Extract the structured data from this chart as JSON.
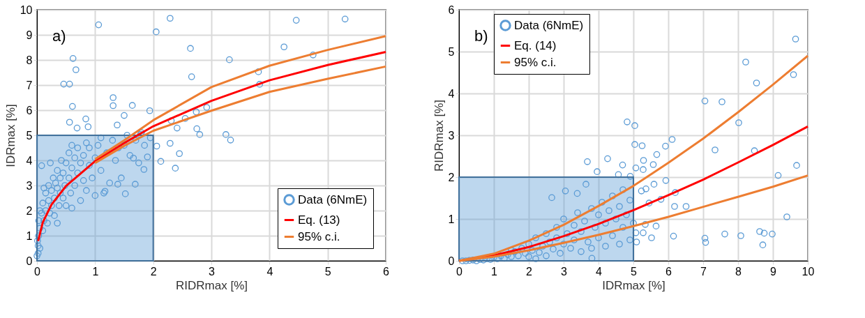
{
  "chart_data": [
    {
      "type": "scatter",
      "xlabel": "RIDRmax [%]",
      "ylabel": "IDRmax [%]",
      "annotations": [
        "a)"
      ],
      "xlim": [
        0,
        6
      ],
      "ylim": [
        0,
        10
      ],
      "xticks": [
        0,
        1,
        2,
        3,
        4,
        5,
        6
      ],
      "yticks": [
        0,
        1,
        2,
        3,
        4,
        5,
        6,
        7,
        8,
        9,
        10
      ],
      "grid": true,
      "legend": "bottom right",
      "series": [
        {
          "name": "Data (6NmE)",
          "marker": "circle",
          "color": "#5b9bd5",
          "x": [
            1.06,
            2.29,
            2.05,
            4.46,
            5.3,
            2.64,
            4.25,
            4.75,
            3.31,
            2.66,
            3.81,
            3.83,
            0.62,
            0.67,
            0.46,
            0.56,
            0.61,
            1.31,
            1.31,
            1.64,
            1.94,
            2.92,
            2.74,
            2.55,
            2.31,
            3.25,
            3.33,
            2.75,
            2.8,
            2.41,
            2.38,
            2.45,
            2.13,
            2.29,
            2.06,
            0.84,
            0.56,
            0.88,
            0.69,
            1.9,
            1.84,
            1.52,
            1.69,
            1.39,
            1.17,
            1.66,
            1.78,
            1.5,
            1.38,
            0.08,
            0.23,
            0.02,
            0.02,
            0.03,
            0.05,
            0.03,
            0.05,
            0.08,
            0.1,
            0.1,
            0.12,
            0.15,
            0.15,
            0.18,
            0.2,
            0.2,
            0.22,
            0.25,
            0.25,
            0.28,
            0.3,
            0.3,
            0.32,
            0.35,
            0.35,
            0.38,
            0.4,
            0.4,
            0.42,
            0.45,
            0.45,
            0.48,
            0.5,
            0.5,
            0.55,
            0.55,
            0.58,
            0.6,
            0.6,
            0.65,
            0.65,
            0.7,
            0.7,
            0.75,
            0.75,
            0.8,
            0.8,
            0.85,
            0.85,
            0.9,
            0.9,
            0.95,
            1.0,
            1.0,
            1.05,
            1.1,
            1.1,
            1.15,
            1.2,
            1.25,
            1.3,
            1.35,
            1.4,
            1.45,
            1.5,
            1.55,
            1.6,
            1.7,
            1.75,
            1.8,
            1.85,
            1.95,
            0.0,
            0.01,
            0.05,
            0.12,
            0.35,
            0.6
          ],
          "values": [
            9.4,
            9.66,
            9.12,
            9.58,
            9.63,
            8.46,
            8.52,
            8.2,
            8.01,
            7.33,
            7.53,
            7.03,
            8.06,
            7.61,
            7.04,
            7.04,
            6.15,
            6.5,
            6.18,
            6.19,
            5.98,
            6.11,
            5.93,
            5.67,
            5.58,
            5.03,
            4.81,
            5.26,
            5.03,
            5.29,
            3.69,
            4.27,
            3.96,
            4.68,
            4.57,
            5.65,
            5.52,
            5.34,
            5.29,
            4.14,
            3.64,
            2.67,
            3.05,
            3.05,
            2.77,
            4.09,
            5.03,
            5.79,
            5.41,
            3.79,
            3.9,
            0.3,
            0.6,
            1.0,
            1.3,
            1.6,
            0.5,
            1.9,
            1.2,
            2.3,
            1.6,
            2.0,
            2.7,
            1.5,
            2.4,
            3.0,
            1.9,
            2.2,
            2.8,
            3.3,
            1.8,
            2.5,
            3.1,
            2.9,
            3.6,
            2.2,
            3.3,
            2.7,
            4.0,
            2.5,
            3.5,
            3.0,
            3.9,
            2.2,
            3.3,
            4.3,
            2.7,
            3.7,
            4.6,
            3.0,
            4.1,
            3.5,
            4.5,
            2.4,
            3.9,
            4.2,
            3.2,
            4.7,
            2.8,
            3.8,
            4.5,
            3.3,
            4.1,
            2.6,
            4.6,
            3.6,
            4.9,
            2.7,
            4.3,
            3.1,
            4.8,
            4.0,
            4.5,
            3.3,
            4.6,
            5.0,
            4.2,
            4.8,
            3.9,
            5.1,
            4.6,
            4.9,
            0.2,
            0.8,
            2.0,
            2.9,
            1.5,
            2.1
          ]
        },
        {
          "type": "area",
          "color": "#5b9bd5",
          "x": [
            0,
            2
          ],
          "values": [
            5,
            5
          ]
        },
        {
          "name": "Eq. (13)",
          "type": "line",
          "color": "#ff0000",
          "x": [
            0.02,
            0.1,
            0.25,
            0.5,
            1,
            1.5,
            2,
            3,
            4,
            5,
            6
          ],
          "values": [
            0.79,
            1.53,
            2.24,
            2.98,
            3.97,
            4.69,
            5.36,
            6.37,
            7.19,
            7.8,
            8.32
          ]
        },
        {
          "name": "95% c.i.",
          "type": "line",
          "color": "#ed7d31",
          "x": [
            1,
            1.5,
            2,
            3,
            4,
            5,
            6
          ],
          "values": [
            4.05,
            4.8,
            5.6,
            6.92,
            7.77,
            8.4,
            8.95
          ]
        },
        {
          "type": "line",
          "color": "#ed7d31",
          "x": [
            1,
            1.5,
            2,
            3,
            4,
            5,
            6
          ],
          "values": [
            3.9,
            4.58,
            5.18,
            5.98,
            6.73,
            7.25,
            7.74
          ]
        }
      ]
    },
    {
      "type": "scatter",
      "xlabel": "IDRmax [%]",
      "ylabel": "RIDRmax [%]",
      "annotations": [
        "b)"
      ],
      "xlim": [
        0,
        10
      ],
      "ylim": [
        0,
        6
      ],
      "xticks": [
        0,
        1,
        2,
        3,
        4,
        5,
        6,
        7,
        8,
        9,
        10
      ],
      "yticks": [
        0,
        1,
        2,
        3,
        4,
        5,
        6
      ],
      "grid": true,
      "legend": "top left",
      "series": [
        {
          "name": "Data (6NmE)",
          "marker": "circle",
          "color": "#5b9bd5",
          "x": [
            9.65,
            8.22,
            9.59,
            8.53,
            7.05,
            7.54,
            8.02,
            7.34,
            8.47,
            9.68,
            9.15,
            9.4,
            4.82,
            5.04,
            5.04,
            5.25,
            6.11,
            5.92,
            5.67,
            5.29,
            5.57,
            5.07,
            4.69,
            4.26,
            3.68,
            3.96,
            4.57,
            4.91,
            5.28,
            5.59,
            5.93,
            6.2,
            6.18,
            6.51,
            5.79,
            5.45,
            5.34,
            5.65,
            5.28,
            5.52,
            6.15,
            7.05,
            7.07,
            7.62,
            8.08,
            8.62,
            8.75,
            8.98,
            8.71,
            5.09,
            5.07,
            5.36,
            5.23,
            3.64,
            2.66,
            3.05,
            3.39,
            3.81,
            0.2,
            0.3,
            0.4,
            0.5,
            0.6,
            0.7,
            0.8,
            0.9,
            1.0,
            1.1,
            1.2,
            1.3,
            1.4,
            1.5,
            1.6,
            1.7,
            1.8,
            1.9,
            2.0,
            2.0,
            2.1,
            2.2,
            2.3,
            2.4,
            2.5,
            2.5,
            2.6,
            2.7,
            2.8,
            2.8,
            2.9,
            3.0,
            3.0,
            3.1,
            3.2,
            3.3,
            3.3,
            3.4,
            3.5,
            3.5,
            3.6,
            3.7,
            3.8,
            3.8,
            3.9,
            4.0,
            4.0,
            4.1,
            4.2,
            4.2,
            4.3,
            4.4,
            4.4,
            4.5,
            4.6,
            4.6,
            4.7,
            4.7,
            4.8,
            4.9,
            4.9,
            5.0,
            0.1,
            1.5,
            2.2
          ],
          "values": [
            5.3,
            4.75,
            4.45,
            4.25,
            3.82,
            3.8,
            3.3,
            2.65,
            2.63,
            2.28,
            2.04,
            1.05,
            3.32,
            3.23,
            2.78,
            2.75,
            2.9,
            2.74,
            2.54,
            2.4,
            2.3,
            2.22,
            2.29,
            2.44,
            2.37,
            2.13,
            2.06,
            2.02,
            2.18,
            1.83,
            1.92,
            1.63,
            1.3,
            1.3,
            1.47,
            1.38,
            0.87,
            0.83,
            0.67,
            0.55,
            0.59,
            0.54,
            0.44,
            0.64,
            0.6,
            0.7,
            0.66,
            0.64,
            0.38,
            0.45,
            0.67,
            1.72,
            1.67,
            1.83,
            1.51,
            1.67,
            1.61,
            0.06,
            0.0,
            0.01,
            0.02,
            0.0,
            0.03,
            0.02,
            0.05,
            0.03,
            0.08,
            0.05,
            0.12,
            0.06,
            0.15,
            0.1,
            0.22,
            0.12,
            0.3,
            0.18,
            0.4,
            0.1,
            0.25,
            0.55,
            0.2,
            0.35,
            0.65,
            0.12,
            0.45,
            0.28,
            0.8,
            0.55,
            0.18,
            0.4,
            1.0,
            0.65,
            0.3,
            0.85,
            0.5,
            1.15,
            0.22,
            0.7,
            0.95,
            0.45,
            1.25,
            0.3,
            0.8,
            1.1,
            0.55,
            1.4,
            0.35,
            0.9,
            1.2,
            0.6,
            1.55,
            1.0,
            0.4,
            1.3,
            0.8,
            1.7,
            1.1,
            0.5,
            1.45,
            0.9,
            0.0,
            0.25,
            0.05
          ]
        },
        {
          "type": "area",
          "color": "#5b9bd5",
          "x": [
            0,
            5
          ],
          "values": [
            2,
            2
          ]
        },
        {
          "name": "Eq. (14)",
          "type": "line",
          "color": "#ff0000",
          "x": [
            0,
            1,
            2,
            3,
            4,
            5,
            6,
            7,
            8,
            9,
            10
          ],
          "values": [
            0,
            0.13,
            0.33,
            0.59,
            0.88,
            1.21,
            1.57,
            1.94,
            2.35,
            2.77,
            3.21
          ]
        },
        {
          "name": "95% c.i.",
          "type": "line",
          "color": "#ed7d31",
          "x": [
            0,
            1,
            2,
            3,
            4,
            5,
            6,
            7,
            8,
            9,
            10
          ],
          "values": [
            0,
            0.17,
            0.48,
            0.86,
            1.31,
            1.79,
            2.34,
            2.92,
            3.55,
            4.21,
            4.9
          ]
        },
        {
          "type": "line",
          "color": "#ed7d31",
          "x": [
            0,
            1,
            2,
            3,
            4,
            5,
            6,
            7,
            8,
            9,
            10
          ],
          "values": [
            0,
            0.1,
            0.25,
            0.43,
            0.62,
            0.83,
            1.05,
            1.29,
            1.53,
            1.77,
            2.04
          ]
        }
      ]
    }
  ]
}
